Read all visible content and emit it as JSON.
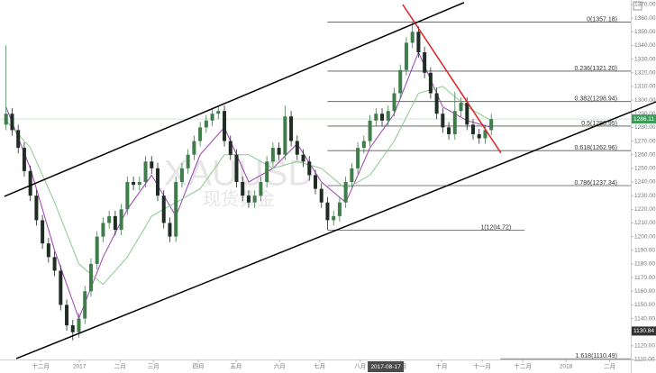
{
  "chart_data": {
    "type": "candlestick",
    "watermark": [
      "XAUUSD",
      "现货黄金"
    ],
    "xlim": [
      0,
      104
    ],
    "ylim": [
      1110,
      1370
    ],
    "yticks": [
      {
        "value": 1110,
        "label": "1110.00"
      },
      {
        "value": 1120,
        "label": "1120.00"
      },
      {
        "value": 1130,
        "label": "1130.00"
      },
      {
        "value": 1140,
        "label": "1140.00"
      },
      {
        "value": 1150,
        "label": "1150.00"
      },
      {
        "value": 1160,
        "label": "1160.00"
      },
      {
        "value": 1170,
        "label": "1170.00"
      },
      {
        "value": 1180,
        "label": "1180.00"
      },
      {
        "value": 1190,
        "label": "1190.00"
      },
      {
        "value": 1200,
        "label": "1200.00"
      },
      {
        "value": 1210,
        "label": "1210.00"
      },
      {
        "value": 1220,
        "label": "1220.00"
      },
      {
        "value": 1230,
        "label": "1230.00"
      },
      {
        "value": 1240,
        "label": "1240.00"
      },
      {
        "value": 1250,
        "label": "1250.00"
      },
      {
        "value": 1260,
        "label": "1260.00"
      },
      {
        "value": 1270,
        "label": "1270.00"
      },
      {
        "value": 1280,
        "label": "1280.00"
      },
      {
        "value": 1290,
        "label": "1290.00"
      },
      {
        "value": 1300,
        "label": "1300.00"
      },
      {
        "value": 1310,
        "label": "1310.00"
      },
      {
        "value": 1320,
        "label": "1320.00"
      },
      {
        "value": 1330,
        "label": "1330.00"
      },
      {
        "value": 1340,
        "label": "1340.00"
      },
      {
        "value": 1350,
        "label": "1350.00"
      },
      {
        "value": 1360,
        "label": "1360.00"
      },
      {
        "value": 1370,
        "label": "1370.00"
      }
    ],
    "xticks": [
      {
        "value": 6.7,
        "label": "十二月"
      },
      {
        "value": 13.1,
        "label": "2017"
      },
      {
        "value": 19.8,
        "label": "二月"
      },
      {
        "value": 25.3,
        "label": "三月"
      },
      {
        "value": 32.7,
        "label": "四月"
      },
      {
        "value": 38.9,
        "label": "五月"
      },
      {
        "value": 46.1,
        "label": "六月"
      },
      {
        "value": 52.7,
        "label": "七月"
      },
      {
        "value": 59.4,
        "label": "八月"
      },
      {
        "value": 66.1,
        "label": "九月"
      },
      {
        "value": 72.8,
        "label": "十月"
      },
      {
        "value": 79.5,
        "label": "十一月"
      },
      {
        "value": 86.2,
        "label": "十二月"
      },
      {
        "value": 93.3,
        "label": "2018"
      },
      {
        "value": 100.5,
        "label": "二月"
      }
    ],
    "crosshair_x": {
      "value": 63.6,
      "label": "2017-08-17"
    },
    "up_color": "#3f7d4b",
    "down_color": "#1f2d24",
    "x": [
      1,
      2,
      3,
      4,
      5,
      6,
      7,
      8,
      9,
      10,
      11,
      12,
      13,
      14,
      15,
      16,
      17,
      18,
      19,
      20,
      21,
      22,
      23,
      24,
      25,
      26,
      27,
      28,
      29,
      30,
      31,
      32,
      33,
      34,
      35,
      36,
      37,
      38,
      39,
      40,
      41,
      42,
      43,
      44,
      45,
      46,
      47,
      48,
      49,
      50,
      51,
      52,
      53,
      54,
      55,
      56,
      57,
      58,
      59,
      60,
      61,
      62,
      63,
      64,
      65,
      66,
      67,
      68,
      69,
      70,
      71,
      72,
      73,
      74,
      75,
      76,
      77,
      78,
      79,
      80,
      81
    ],
    "ohlc": [
      [
        1282,
        1340,
        1278,
        1290
      ],
      [
        1290,
        1294,
        1274,
        1278
      ],
      [
        1278,
        1282,
        1261,
        1265
      ],
      [
        1265,
        1269,
        1244,
        1248
      ],
      [
        1248,
        1252,
        1226,
        1230
      ],
      [
        1230,
        1234,
        1208,
        1212
      ],
      [
        1212,
        1216,
        1191,
        1195
      ],
      [
        1195,
        1199,
        1181,
        1185
      ],
      [
        1185,
        1189,
        1171,
        1175
      ],
      [
        1175,
        1179,
        1146,
        1150
      ],
      [
        1150,
        1154,
        1131,
        1135
      ],
      [
        1135,
        1139,
        1124,
        1130
      ],
      [
        1130,
        1144,
        1126,
        1140
      ],
      [
        1140,
        1164,
        1136,
        1160
      ],
      [
        1160,
        1184,
        1156,
        1180
      ],
      [
        1180,
        1204,
        1176,
        1200
      ],
      [
        1200,
        1214,
        1196,
        1210
      ],
      [
        1210,
        1219,
        1206,
        1215
      ],
      [
        1215,
        1219,
        1201,
        1205
      ],
      [
        1205,
        1224,
        1201,
        1220
      ],
      [
        1220,
        1244,
        1216,
        1240
      ],
      [
        1240,
        1244,
        1234,
        1238
      ],
      [
        1238,
        1244,
        1234,
        1240
      ],
      [
        1240,
        1259,
        1236,
        1255
      ],
      [
        1255,
        1259,
        1246,
        1250
      ],
      [
        1250,
        1254,
        1226,
        1230
      ],
      [
        1230,
        1234,
        1206,
        1210
      ],
      [
        1210,
        1214,
        1196,
        1200
      ],
      [
        1200,
        1244,
        1196,
        1240
      ],
      [
        1240,
        1254,
        1236,
        1250
      ],
      [
        1250,
        1264,
        1246,
        1260
      ],
      [
        1260,
        1274,
        1256,
        1270
      ],
      [
        1270,
        1284,
        1266,
        1280
      ],
      [
        1280,
        1289,
        1276,
        1285
      ],
      [
        1285,
        1294,
        1281,
        1290
      ],
      [
        1290,
        1296,
        1286,
        1292
      ],
      [
        1292,
        1296,
        1266,
        1270
      ],
      [
        1270,
        1274,
        1256,
        1260
      ],
      [
        1260,
        1264,
        1236,
        1240
      ],
      [
        1240,
        1244,
        1226,
        1230
      ],
      [
        1230,
        1234,
        1221,
        1225
      ],
      [
        1225,
        1234,
        1221,
        1230
      ],
      [
        1230,
        1244,
        1226,
        1240
      ],
      [
        1240,
        1259,
        1236,
        1255
      ],
      [
        1255,
        1269,
        1251,
        1265
      ],
      [
        1265,
        1269,
        1256,
        1260
      ],
      [
        1260,
        1296,
        1256,
        1288
      ],
      [
        1288,
        1292,
        1266,
        1270
      ],
      [
        1270,
        1274,
        1256,
        1260
      ],
      [
        1260,
        1264,
        1251,
        1255
      ],
      [
        1255,
        1259,
        1241,
        1245
      ],
      [
        1245,
        1249,
        1231,
        1235
      ],
      [
        1235,
        1239,
        1221,
        1225
      ],
      [
        1225,
        1229,
        1205,
        1212
      ],
      [
        1212,
        1219,
        1208,
        1215
      ],
      [
        1215,
        1229,
        1211,
        1225
      ],
      [
        1225,
        1244,
        1221,
        1240
      ],
      [
        1240,
        1254,
        1236,
        1250
      ],
      [
        1250,
        1269,
        1246,
        1265
      ],
      [
        1265,
        1274,
        1261,
        1270
      ],
      [
        1270,
        1289,
        1266,
        1285
      ],
      [
        1285,
        1294,
        1281,
        1290
      ],
      [
        1290,
        1294,
        1281,
        1285
      ],
      [
        1285,
        1296,
        1281,
        1292
      ],
      [
        1292,
        1309,
        1288,
        1305
      ],
      [
        1305,
        1326,
        1301,
        1322
      ],
      [
        1322,
        1346,
        1318,
        1342
      ],
      [
        1342,
        1357,
        1338,
        1350
      ],
      [
        1350,
        1354,
        1331,
        1335
      ],
      [
        1335,
        1339,
        1316,
        1320
      ],
      [
        1320,
        1324,
        1301,
        1305
      ],
      [
        1305,
        1309,
        1286,
        1290
      ],
      [
        1290,
        1294,
        1276,
        1280
      ],
      [
        1280,
        1284,
        1271,
        1275
      ],
      [
        1275,
        1306,
        1271,
        1292
      ],
      [
        1292,
        1302,
        1288,
        1298
      ],
      [
        1298,
        1302,
        1278,
        1282
      ],
      [
        1282,
        1286,
        1271,
        1275
      ],
      [
        1275,
        1279,
        1268,
        1272
      ],
      [
        1272,
        1282,
        1268,
        1278
      ],
      [
        1278,
        1290,
        1274,
        1286
      ]
    ],
    "moving_averages": [
      {
        "color": "#9b3fb5",
        "x": [
          1,
          5,
          9,
          13,
          17,
          21,
          25,
          29,
          33,
          37,
          41,
          45,
          49,
          53,
          57,
          61,
          65,
          69,
          73,
          77,
          81
        ],
        "values": [
          1295,
          1250,
          1190,
          1140,
          1185,
          1220,
          1245,
          1215,
          1260,
          1280,
          1240,
          1250,
          1268,
          1240,
          1225,
          1265,
          1290,
          1335,
          1295,
          1285,
          1280
        ]
      },
      {
        "color": "#8cc98f",
        "x": [
          1,
          5,
          9,
          13,
          17,
          21,
          25,
          29,
          33,
          37,
          41,
          45,
          49,
          53,
          57,
          61,
          65,
          69,
          73,
          77,
          81
        ],
        "values": [
          1285,
          1265,
          1225,
          1180,
          1165,
          1185,
          1215,
          1225,
          1235,
          1260,
          1260,
          1250,
          1255,
          1250,
          1235,
          1245,
          1270,
          1305,
          1310,
          1295,
          1285
        ]
      }
    ],
    "trendlines": [
      {
        "color": "#000000",
        "x": [
          0.74,
          76.5
        ],
        "values": [
          1229.5,
          1371.4
        ]
      },
      {
        "color": "#000000",
        "x": [
          2.7,
          108.2
        ],
        "values": [
          1110.7,
          1298.8
        ]
      },
      {
        "color": "#e02020",
        "x": [
          66.4,
          82.6
        ],
        "values": [
          1370,
          1261.2
        ]
      }
    ],
    "levels": [
      {
        "label": "0(1357.18)",
        "value": 1357.18,
        "x": [
          54,
          104
        ]
      },
      {
        "label": "0.236(1321.20)",
        "value": 1321.2,
        "x": [
          54,
          104
        ]
      },
      {
        "label": "0.382(1298.94)",
        "value": 1298.94,
        "x": [
          54,
          104
        ]
      },
      {
        "label": "0.5(1280.95)",
        "value": 1280.95,
        "x": [
          54,
          104
        ]
      },
      {
        "label": "0.618(1262.96)",
        "value": 1262.96,
        "x": [
          54,
          104
        ]
      },
      {
        "label": "0.786(1237.34)",
        "value": 1237.34,
        "x": [
          54,
          104
        ]
      },
      {
        "label": "1(1204.72)",
        "value": 1204.72,
        "x": [
          54,
          86.5
        ]
      },
      {
        "label": "1.618(1110.49)",
        "value": 1110.49,
        "x": [
          82.5,
          104
        ]
      }
    ],
    "price_tags": [
      {
        "value": 1286.11,
        "color": "#3a9d5a"
      },
      {
        "value": 1130.84,
        "color": "#333333"
      }
    ]
  }
}
